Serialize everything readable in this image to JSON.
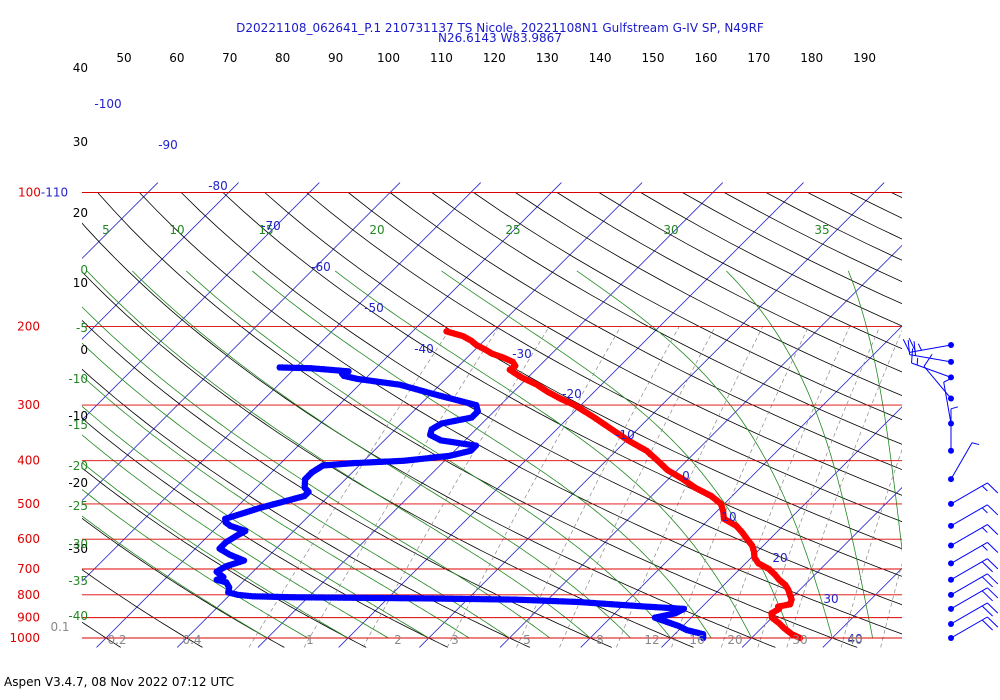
{
  "header": {
    "line1": "D20221108_062641_P.1 210731137 TS Nicole, 20221108N1 Gulfstream G-IV SP, N49RF",
    "line2": "N26.6143 W83.9867"
  },
  "footer": "Aspen V3.4.7, 08 Nov 2022  07:12 UTC",
  "colors": {
    "isobar": "#dd0000",
    "isotherm": "#2222cc",
    "dry_adiabat": "#000000",
    "moist_adiabat": "#228822",
    "mixing_ratio": "#888888",
    "temperature": "#ff0000",
    "dewpoint": "#0000ff",
    "tick_text": "#000000",
    "wind_barb": "#0000ff"
  },
  "chart_data": {
    "type": "skew-t",
    "pressure_labels": [
      {
        "p": 1000,
        "label": "1000"
      },
      {
        "p": 900,
        "label": "900"
      },
      {
        "p": 800,
        "label": "800"
      },
      {
        "p": 700,
        "label": "700"
      },
      {
        "p": 600,
        "label": "600"
      },
      {
        "p": 500,
        "label": "500"
      },
      {
        "p": 400,
        "label": "400"
      },
      {
        "p": 300,
        "label": "300"
      },
      {
        "p": 200,
        "label": "200"
      },
      {
        "p": 100,
        "label": "100"
      }
    ],
    "top_pressure_suffix": "-110",
    "top_scale_labels": [
      "50",
      "60",
      "70",
      "80",
      "90",
      "100",
      "110",
      "120",
      "130",
      "140",
      "150",
      "160",
      "170",
      "180",
      "190"
    ],
    "left_black_labels": [
      "40",
      "30",
      "20",
      "10",
      "0",
      "-10",
      "-20",
      "-30"
    ],
    "left_green_labels": [
      "0",
      "-5",
      "-10",
      "-15",
      "-20",
      "-25",
      "-30",
      "-35",
      "-40"
    ],
    "green_top_labels": [
      "5",
      "10",
      "15",
      "20",
      "25",
      "30",
      "35"
    ],
    "isotherm_labels": [
      "-100",
      "-90",
      "-80",
      "-70",
      "-60",
      "-50",
      "-40",
      "-30",
      "-20",
      "-10",
      "0",
      "10",
      "20",
      "30",
      "40"
    ],
    "mixing_ratio_labels": [
      "0.1",
      "0.2",
      "0.4",
      "1",
      "2",
      "3",
      "5",
      "8",
      "12",
      "16",
      "20",
      "30",
      "40"
    ],
    "temperature_profile": [
      [
        1000,
        26.0
      ],
      [
        980,
        24.5
      ],
      [
        950,
        22.8
      ],
      [
        925,
        21.5
      ],
      [
        900,
        20.0
      ],
      [
        880,
        19.4
      ],
      [
        860,
        19.8
      ],
      [
        850,
        19.4
      ],
      [
        840,
        20.6
      ],
      [
        820,
        20.2
      ],
      [
        800,
        19.4
      ],
      [
        780,
        18.6
      ],
      [
        760,
        17.6
      ],
      [
        740,
        16.2
      ],
      [
        720,
        15.0
      ],
      [
        700,
        13.6
      ],
      [
        680,
        11.6
      ],
      [
        660,
        10.4
      ],
      [
        640,
        9.6
      ],
      [
        620,
        8.6
      ],
      [
        600,
        7.2
      ],
      [
        580,
        5.8
      ],
      [
        560,
        4.2
      ],
      [
        540,
        1.8
      ],
      [
        520,
        0.8
      ],
      [
        500,
        -0.4
      ],
      [
        480,
        -2.6
      ],
      [
        460,
        -5.6
      ],
      [
        440,
        -8.2
      ],
      [
        420,
        -11.2
      ],
      [
        400,
        -13.6
      ],
      [
        380,
        -16.2
      ],
      [
        360,
        -19.8
      ],
      [
        340,
        -23.2
      ],
      [
        320,
        -26.8
      ],
      [
        300,
        -30.8
      ],
      [
        290,
        -33.4
      ],
      [
        280,
        -35.8
      ],
      [
        270,
        -38.0
      ],
      [
        260,
        -40.8
      ],
      [
        250,
        -43.2
      ],
      [
        245,
        -43.0
      ],
      [
        240,
        -43.8
      ],
      [
        235,
        -45.4
      ],
      [
        230,
        -47.4
      ],
      [
        225,
        -48.8
      ],
      [
        220,
        -50.4
      ],
      [
        215,
        -51.6
      ],
      [
        210,
        -53.2
      ],
      [
        205,
        -55.8
      ]
    ],
    "dewpoint_profile": [
      [
        1000,
        14.0
      ],
      [
        980,
        13.5
      ],
      [
        960,
        11.0
      ],
      [
        940,
        9.5
      ],
      [
        920,
        7.5
      ],
      [
        900,
        5.5
      ],
      [
        880,
        7.5
      ],
      [
        860,
        8.0
      ],
      [
        850,
        3.0
      ],
      [
        830,
        -6.0
      ],
      [
        820,
        -14.0
      ],
      [
        815,
        -25.0
      ],
      [
        812,
        -35.0
      ],
      [
        810,
        -42.0
      ],
      [
        806,
        -47.0
      ],
      [
        800,
        -49.0
      ],
      [
        790,
        -50.5
      ],
      [
        770,
        -51.0
      ],
      [
        750,
        -52.0
      ],
      [
        740,
        -53.5
      ],
      [
        730,
        -53.0
      ],
      [
        710,
        -54.5
      ],
      [
        690,
        -54.0
      ],
      [
        670,
        -52.5
      ],
      [
        650,
        -55.0
      ],
      [
        630,
        -57.0
      ],
      [
        610,
        -57.0
      ],
      [
        590,
        -56.5
      ],
      [
        575,
        -56.0
      ],
      [
        560,
        -58.5
      ],
      [
        550,
        -59.5
      ],
      [
        540,
        -60.0
      ],
      [
        530,
        -59.0
      ],
      [
        510,
        -57.0
      ],
      [
        495,
        -55.0
      ],
      [
        480,
        -53.0
      ],
      [
        470,
        -53.0
      ],
      [
        460,
        -54.0
      ],
      [
        450,
        -54.5
      ],
      [
        440,
        -55.0
      ],
      [
        425,
        -55.0
      ],
      [
        410,
        -54.5
      ],
      [
        405,
        -51.0
      ],
      [
        400,
        -45.0
      ],
      [
        390,
        -40.0
      ],
      [
        380,
        -38.0
      ],
      [
        370,
        -38.0
      ],
      [
        360,
        -43.0
      ],
      [
        350,
        -45.0
      ],
      [
        340,
        -45.5
      ],
      [
        330,
        -45.0
      ],
      [
        320,
        -42.0
      ],
      [
        310,
        -42.0
      ],
      [
        300,
        -43.0
      ],
      [
        285,
        -49.0
      ],
      [
        270,
        -55.0
      ],
      [
        262,
        -61.0
      ],
      [
        260,
        -62.0
      ],
      [
        258,
        -63.0
      ],
      [
        255,
        -63.5
      ],
      [
        252,
        -63.0
      ],
      [
        248,
        -68.0
      ],
      [
        247,
        -72.0
      ]
    ],
    "wind_barbs": [
      {
        "p": 220,
        "dir": 260,
        "spd": 25
      },
      {
        "p": 240,
        "dir": 280,
        "spd": 20
      },
      {
        "p": 260,
        "dir": 290,
        "spd": 15
      },
      {
        "p": 290,
        "dir": 320,
        "spd": 10
      },
      {
        "p": 330,
        "dir": 350,
        "spd": 5
      },
      {
        "p": 380,
        "dir": 360,
        "spd": 5
      },
      {
        "p": 440,
        "dir": 30,
        "spd": 5
      },
      {
        "p": 500,
        "dir": 60,
        "spd": 15
      },
      {
        "p": 560,
        "dir": 60,
        "spd": 15
      },
      {
        "p": 620,
        "dir": 60,
        "spd": 15
      },
      {
        "p": 680,
        "dir": 60,
        "spd": 15
      },
      {
        "p": 740,
        "dir": 60,
        "spd": 20
      },
      {
        "p": 800,
        "dir": 60,
        "spd": 20
      },
      {
        "p": 860,
        "dir": 60,
        "spd": 20
      },
      {
        "p": 930,
        "dir": 60,
        "spd": 20
      },
      {
        "p": 1000,
        "dir": 60,
        "spd": 20
      }
    ],
    "title": "",
    "xlabel": "",
    "ylabel": ""
  }
}
